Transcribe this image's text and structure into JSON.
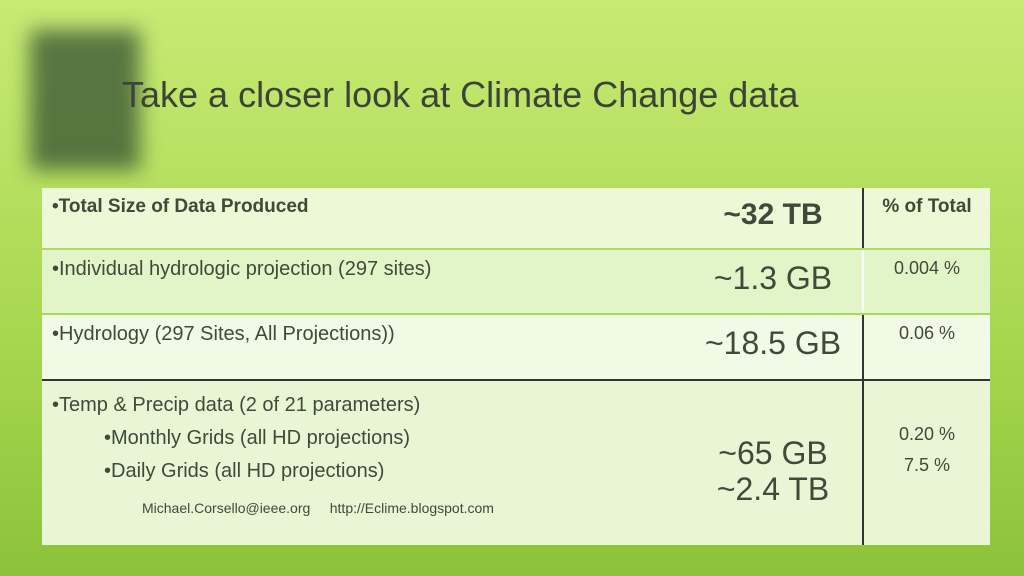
{
  "title": "Take a closer look at Climate Change data",
  "table": {
    "header": [
      "•Total Size of Data Produced",
      "~32 TB",
      "% of Total"
    ],
    "rows": [
      [
        "•Individual hydrologic projection (297 sites)",
        "~1.3 GB",
        "0.004 %"
      ],
      [
        "•Hydrology (297 Sites, All Projections))",
        "~18.5 GB",
        "0.06 %"
      ]
    ],
    "last_row": {
      "main": "•Temp & Precip data (2 of 21 parameters)",
      "sub": [
        "•Monthly Grids (all HD projections)",
        "•Daily Grids (all HD projections)"
      ],
      "sizes": [
        "~65 GB",
        "~2.4 TB"
      ],
      "percents": [
        "0.20 %",
        "7.5 %"
      ],
      "footer": [
        "Michael.Corsello@ieee.org",
        "http://Eclime.blogspot.com"
      ]
    }
  }
}
